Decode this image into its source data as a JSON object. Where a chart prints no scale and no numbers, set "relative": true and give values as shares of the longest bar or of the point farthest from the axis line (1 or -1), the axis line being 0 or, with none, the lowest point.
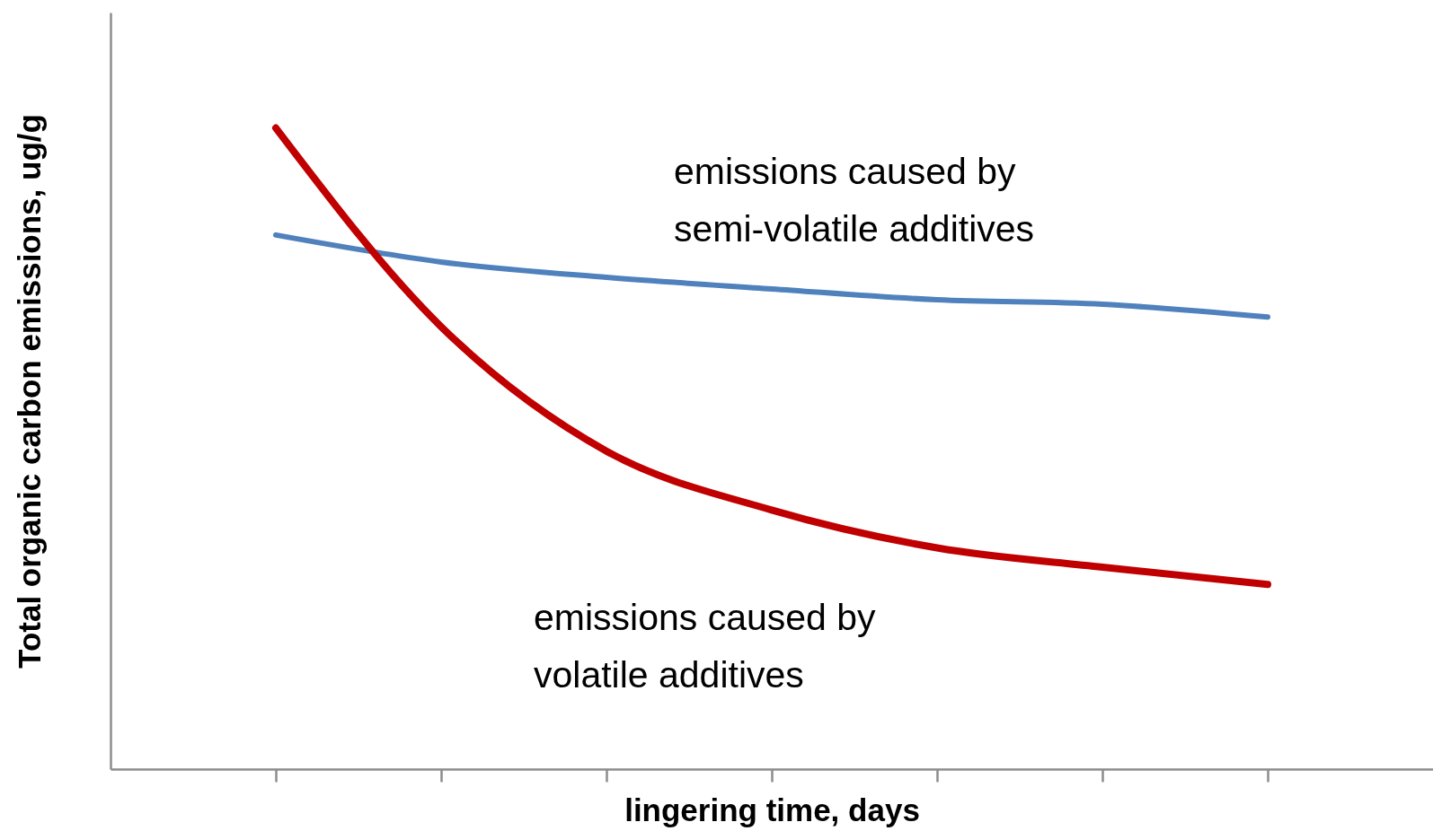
{
  "chart_data": {
    "type": "line",
    "relative": true,
    "xlabel": "lingering time, days",
    "ylabel": "Total organic carbon emissions, ug/g",
    "categories": [
      null,
      null,
      null,
      null,
      null,
      null,
      null
    ],
    "series": [
      {
        "color": "#4f81bd",
        "values": [
          0.833,
          0.791,
          0.767,
          0.749,
          0.732,
          0.725,
          0.705
        ]
      },
      {
        "color": "#c00000",
        "values": [
          1.0,
          0.69,
          0.496,
          0.404,
          0.345,
          0.315,
          0.288
        ]
      }
    ],
    "annotations": [
      "emissions caused by\nsemi-volatile additives",
      "emissions caused by\nvolatile additives"
    ],
    "tick_labels": false,
    "grid": false,
    "marker": "none",
    "line_style": "solid"
  }
}
